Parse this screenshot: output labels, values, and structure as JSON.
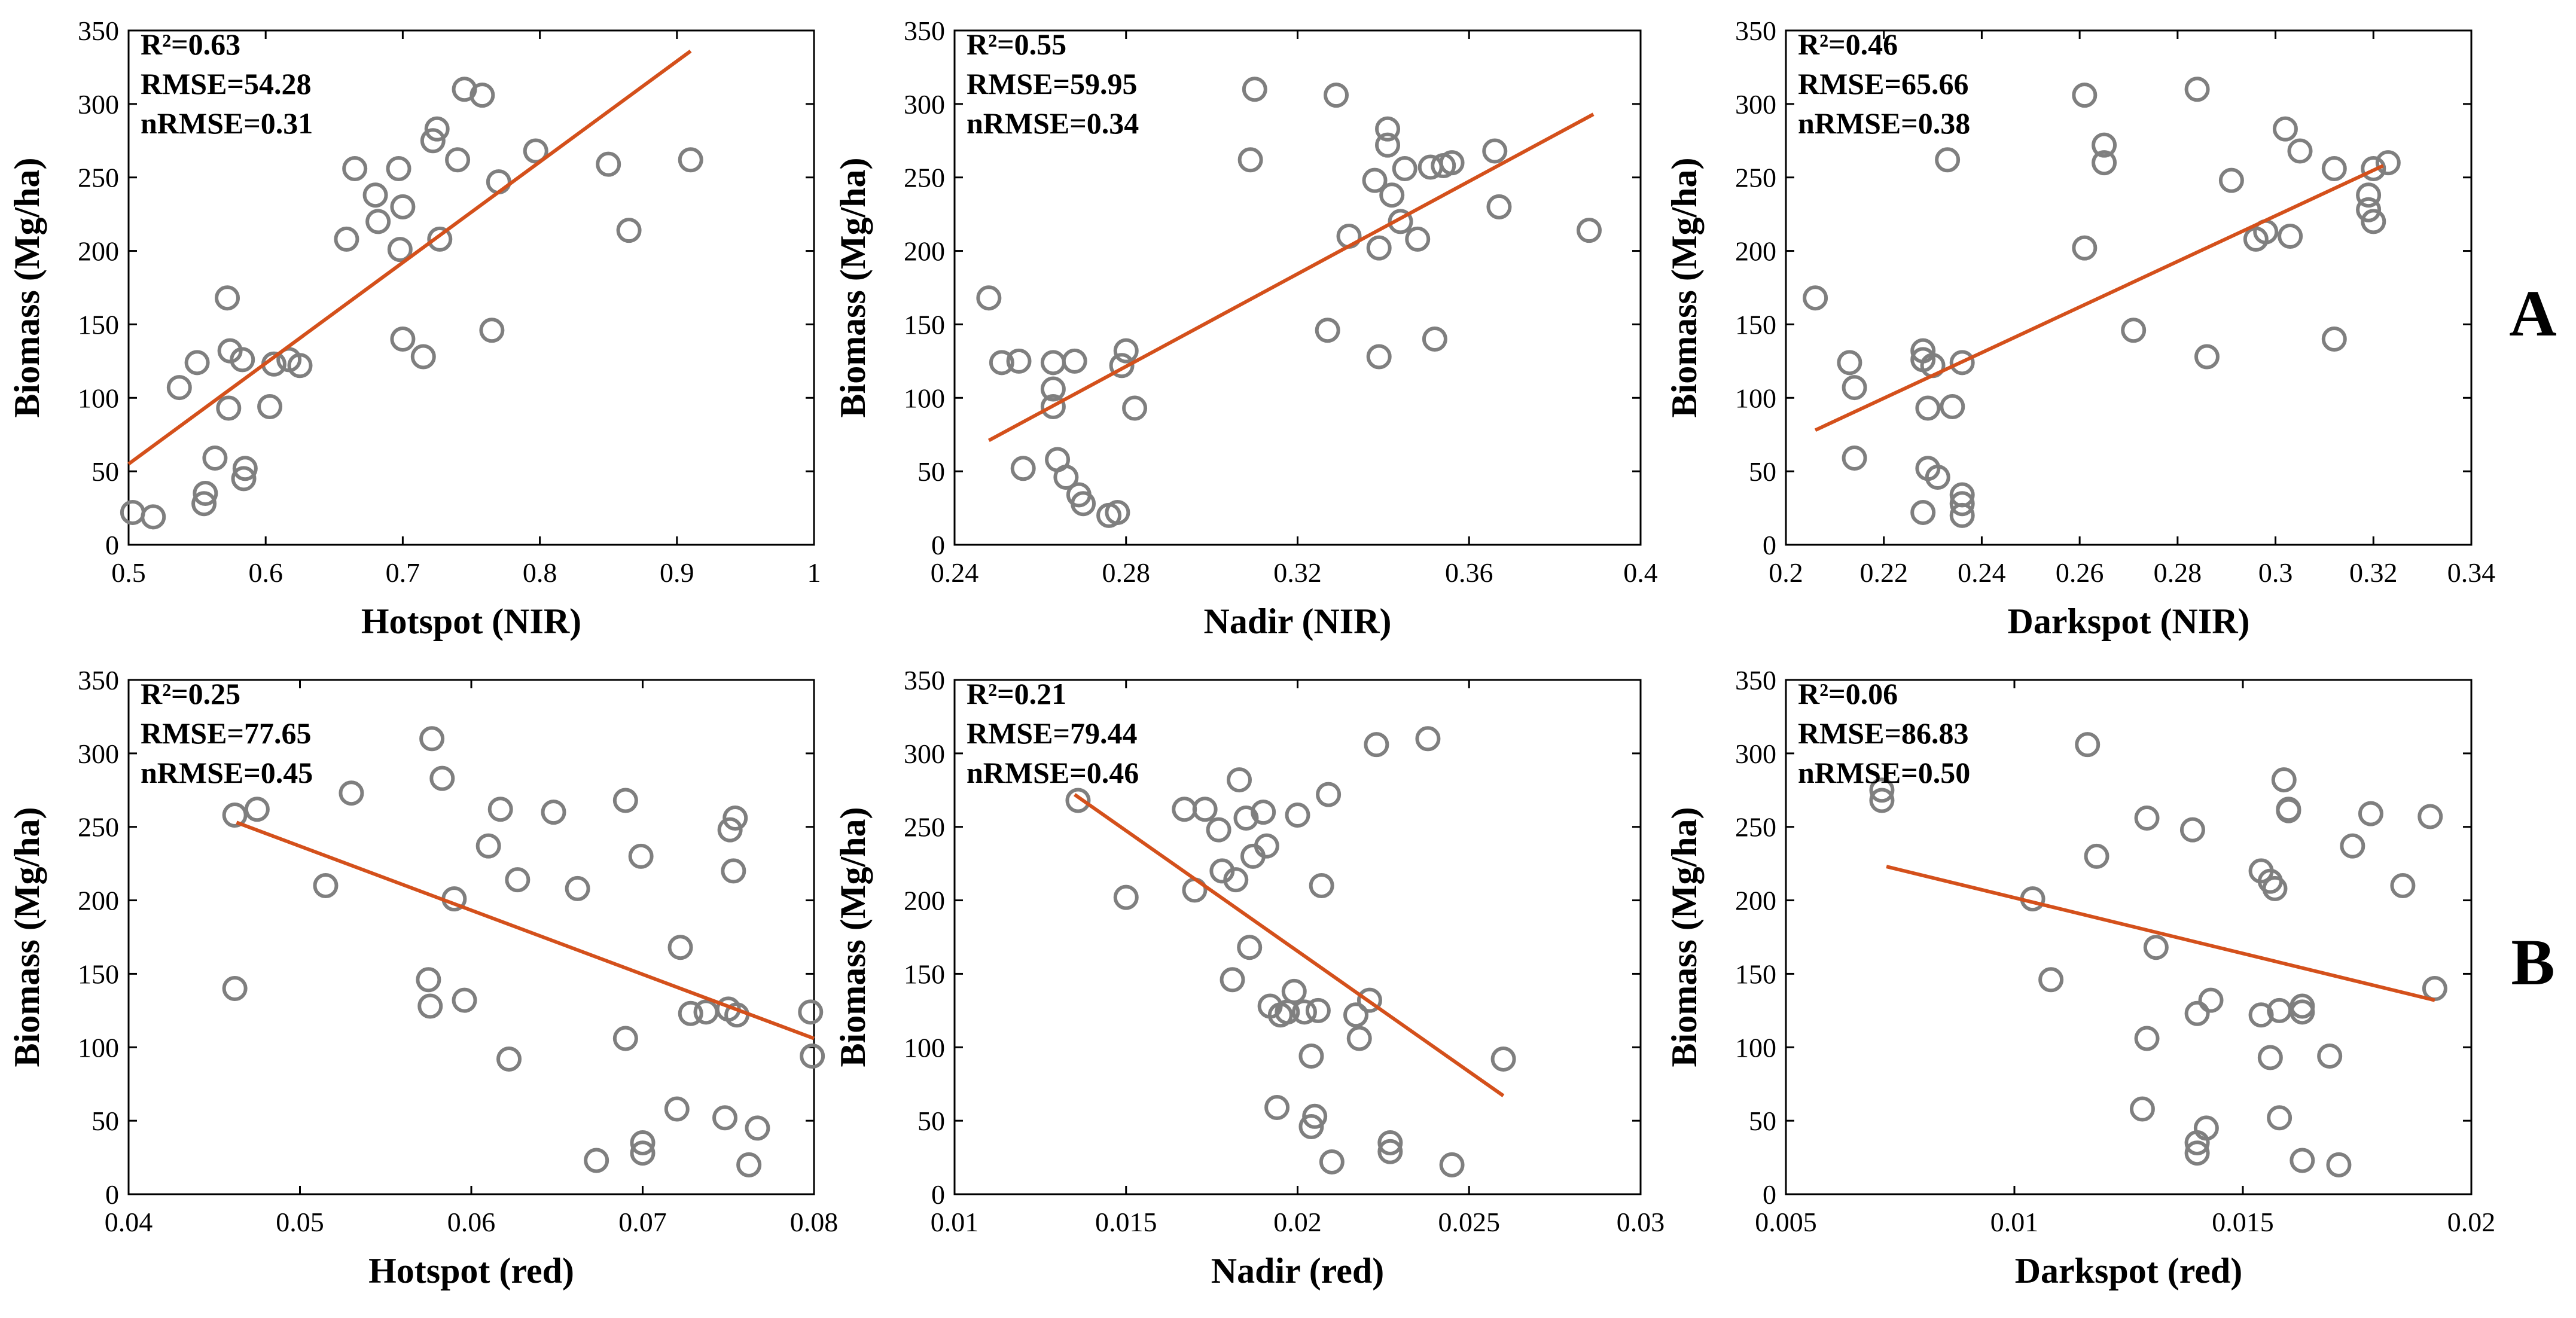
{
  "colors": {
    "points": "#7f7f7f",
    "fit": "#d4501b",
    "axes": "#000000"
  },
  "row_labels": [
    "A",
    "B"
  ],
  "chart_data": [
    {
      "type": "scatter",
      "row": "A",
      "xlabel": "Hotspot (NIR)",
      "ylabel": "Biomass (Mg/ha)",
      "xlim": [
        0.5,
        1.0
      ],
      "ylim": [
        0,
        350
      ],
      "xticks": [
        0.5,
        0.6,
        0.7,
        0.8,
        0.9,
        1.0
      ],
      "xtick_labels": [
        "0.5",
        "0.6",
        "0.7",
        "0.8",
        "0.9",
        "1"
      ],
      "yticks": [
        0,
        50,
        100,
        150,
        200,
        250,
        300,
        350
      ],
      "ytick_labels": [
        "0",
        "50",
        "100",
        "150",
        "200",
        "250",
        "300",
        "350"
      ],
      "stats": [
        "R²=0.63",
        "RMSE=54.28",
        "nRMSE=0.31"
      ],
      "fit": [
        [
          0.5,
          55
        ],
        [
          0.91,
          336
        ]
      ],
      "points": [
        [
          0.503,
          22
        ],
        [
          0.518,
          19
        ],
        [
          0.537,
          107
        ],
        [
          0.55,
          124
        ],
        [
          0.555,
          28
        ],
        [
          0.556,
          35
        ],
        [
          0.563,
          59
        ],
        [
          0.572,
          168
        ],
        [
          0.573,
          93
        ],
        [
          0.574,
          132
        ],
        [
          0.583,
          126
        ],
        [
          0.584,
          45
        ],
        [
          0.585,
          52
        ],
        [
          0.603,
          94
        ],
        [
          0.606,
          123
        ],
        [
          0.617,
          126
        ],
        [
          0.625,
          122
        ],
        [
          0.659,
          208
        ],
        [
          0.665,
          256
        ],
        [
          0.68,
          238
        ],
        [
          0.682,
          220
        ],
        [
          0.697,
          256
        ],
        [
          0.698,
          201
        ],
        [
          0.7,
          230
        ],
        [
          0.7,
          140
        ],
        [
          0.715,
          128
        ],
        [
          0.722,
          275
        ],
        [
          0.725,
          283
        ],
        [
          0.727,
          208
        ],
        [
          0.74,
          262
        ],
        [
          0.745,
          310
        ],
        [
          0.758,
          306
        ],
        [
          0.765,
          146
        ],
        [
          0.77,
          247
        ],
        [
          0.797,
          268
        ],
        [
          0.85,
          259
        ],
        [
          0.865,
          214
        ],
        [
          0.91,
          262
        ]
      ]
    },
    {
      "type": "scatter",
      "row": "A",
      "xlabel": "Nadir (NIR)",
      "ylabel": "Biomass (Mg/ha)",
      "xlim": [
        0.24,
        0.4
      ],
      "ylim": [
        0,
        350
      ],
      "xticks": [
        0.24,
        0.28,
        0.32,
        0.36,
        0.4
      ],
      "xtick_labels": [
        "0.24",
        "0.28",
        "0.32",
        "0.36",
        "0.4"
      ],
      "yticks": [
        0,
        50,
        100,
        150,
        200,
        250,
        300,
        350
      ],
      "ytick_labels": [
        "0",
        "50",
        "100",
        "150",
        "200",
        "250",
        "300",
        "350"
      ],
      "stats": [
        "R²=0.55",
        "RMSE=59.95",
        "nRMSE=0.34"
      ],
      "fit": [
        [
          0.248,
          71
        ],
        [
          0.389,
          293
        ]
      ],
      "points": [
        [
          0.248,
          168
        ],
        [
          0.251,
          124
        ],
        [
          0.255,
          125
        ],
        [
          0.256,
          52
        ],
        [
          0.263,
          124
        ],
        [
          0.263,
          106
        ],
        [
          0.263,
          94
        ],
        [
          0.264,
          58
        ],
        [
          0.266,
          46
        ],
        [
          0.268,
          125
        ],
        [
          0.269,
          34
        ],
        [
          0.27,
          28
        ],
        [
          0.276,
          20
        ],
        [
          0.278,
          22
        ],
        [
          0.279,
          122
        ],
        [
          0.28,
          132
        ],
        [
          0.282,
          93
        ],
        [
          0.309,
          262
        ],
        [
          0.31,
          310
        ],
        [
          0.327,
          146
        ],
        [
          0.329,
          306
        ],
        [
          0.332,
          210
        ],
        [
          0.338,
          248
        ],
        [
          0.339,
          202
        ],
        [
          0.339,
          128
        ],
        [
          0.341,
          272
        ],
        [
          0.341,
          283
        ],
        [
          0.342,
          238
        ],
        [
          0.344,
          220
        ],
        [
          0.345,
          256
        ],
        [
          0.348,
          208
        ],
        [
          0.351,
          257
        ],
        [
          0.352,
          140
        ],
        [
          0.354,
          258
        ],
        [
          0.356,
          260
        ],
        [
          0.366,
          268
        ],
        [
          0.367,
          230
        ],
        [
          0.388,
          214
        ]
      ]
    },
    {
      "type": "scatter",
      "row": "A",
      "xlabel": "Darkspot (NIR)",
      "ylabel": "Biomass (Mg/ha)",
      "xlim": [
        0.2,
        0.34
      ],
      "ylim": [
        0,
        350
      ],
      "xticks": [
        0.2,
        0.22,
        0.24,
        0.26,
        0.28,
        0.3,
        0.32,
        0.34
      ],
      "xtick_labels": [
        "0.2",
        "0.22",
        "0.24",
        "0.26",
        "0.28",
        "0.3",
        "0.32",
        "0.34"
      ],
      "yticks": [
        0,
        50,
        100,
        150,
        200,
        250,
        300,
        350
      ],
      "ytick_labels": [
        "0",
        "50",
        "100",
        "150",
        "200",
        "250",
        "300",
        "350"
      ],
      "stats": [
        "R²=0.46",
        "RMSE=65.66",
        "nRMSE=0.38"
      ],
      "fit": [
        [
          0.206,
          78
        ],
        [
          0.322,
          258
        ]
      ],
      "points": [
        [
          0.206,
          168
        ],
        [
          0.213,
          124
        ],
        [
          0.214,
          107
        ],
        [
          0.214,
          59
        ],
        [
          0.228,
          132
        ],
        [
          0.228,
          126
        ],
        [
          0.229,
          93
        ],
        [
          0.229,
          52
        ],
        [
          0.23,
          122
        ],
        [
          0.231,
          46
        ],
        [
          0.228,
          22
        ],
        [
          0.233,
          262
        ],
        [
          0.234,
          94
        ],
        [
          0.236,
          124
        ],
        [
          0.236,
          34
        ],
        [
          0.236,
          28
        ],
        [
          0.236,
          20
        ],
        [
          0.261,
          306
        ],
        [
          0.261,
          202
        ],
        [
          0.265,
          272
        ],
        [
          0.265,
          260
        ],
        [
          0.271,
          146
        ],
        [
          0.284,
          310
        ],
        [
          0.286,
          128
        ],
        [
          0.291,
          248
        ],
        [
          0.296,
          208
        ],
        [
          0.298,
          213
        ],
        [
          0.302,
          283
        ],
        [
          0.303,
          210
        ],
        [
          0.305,
          268
        ],
        [
          0.312,
          256
        ],
        [
          0.312,
          140
        ],
        [
          0.319,
          238
        ],
        [
          0.319,
          228
        ],
        [
          0.32,
          220
        ],
        [
          0.32,
          256
        ],
        [
          0.323,
          260
        ]
      ]
    },
    {
      "type": "scatter",
      "row": "B",
      "xlabel": "Hotspot (red)",
      "ylabel": "Biomass (Mg/ha)",
      "xlim": [
        0.04,
        0.08
      ],
      "ylim": [
        0,
        350
      ],
      "xticks": [
        0.04,
        0.05,
        0.06,
        0.07,
        0.08
      ],
      "xtick_labels": [
        "0.04",
        "0.05",
        "0.06",
        "0.07",
        "0.08"
      ],
      "yticks": [
        0,
        50,
        100,
        150,
        200,
        250,
        300,
        350
      ],
      "ytick_labels": [
        "0",
        "50",
        "100",
        "150",
        "200",
        "250",
        "300",
        "350"
      ],
      "stats": [
        "R²=0.25",
        "RMSE=77.65",
        "nRMSE=0.45"
      ],
      "fit": [
        [
          0.0463,
          253
        ],
        [
          0.08,
          106
        ]
      ],
      "points": [
        [
          0.0462,
          258
        ],
        [
          0.0462,
          140
        ],
        [
          0.0475,
          262
        ],
        [
          0.0515,
          210
        ],
        [
          0.053,
          273
        ],
        [
          0.0575,
          146
        ],
        [
          0.0576,
          128
        ],
        [
          0.0577,
          310
        ],
        [
          0.0583,
          283
        ],
        [
          0.059,
          201
        ],
        [
          0.0596,
          132
        ],
        [
          0.061,
          237
        ],
        [
          0.0617,
          262
        ],
        [
          0.0622,
          92
        ],
        [
          0.0627,
          214
        ],
        [
          0.0648,
          260
        ],
        [
          0.0662,
          208
        ],
        [
          0.0673,
          23
        ],
        [
          0.069,
          268
        ],
        [
          0.069,
          106
        ],
        [
          0.0699,
          230
        ],
        [
          0.07,
          28
        ],
        [
          0.07,
          35
        ],
        [
          0.072,
          58
        ],
        [
          0.0722,
          168
        ],
        [
          0.0728,
          123
        ],
        [
          0.0737,
          124
        ],
        [
          0.0748,
          52
        ],
        [
          0.0751,
          248
        ],
        [
          0.0753,
          220
        ],
        [
          0.0754,
          256
        ],
        [
          0.0755,
          122
        ],
        [
          0.0762,
          20
        ],
        [
          0.0767,
          45
        ],
        [
          0.0798,
          124
        ],
        [
          0.0799,
          94
        ],
        [
          0.075,
          126
        ]
      ]
    },
    {
      "type": "scatter",
      "row": "B",
      "xlabel": "Nadir (red)",
      "ylabel": "Biomass (Mg/ha)",
      "xlim": [
        0.01,
        0.03
      ],
      "ylim": [
        0,
        350
      ],
      "xticks": [
        0.01,
        0.015,
        0.02,
        0.025,
        0.03
      ],
      "xtick_labels": [
        "0.01",
        "0.015",
        "0.02",
        "0.025",
        "0.03"
      ],
      "yticks": [
        0,
        50,
        100,
        150,
        200,
        250,
        300,
        350
      ],
      "ytick_labels": [
        "0",
        "50",
        "100",
        "150",
        "200",
        "250",
        "300",
        "350"
      ],
      "stats": [
        "R²=0.21",
        "RMSE=79.44",
        "nRMSE=0.46"
      ],
      "fit": [
        [
          0.0135,
          272
        ],
        [
          0.026,
          67
        ]
      ],
      "points": [
        [
          0.0136,
          268
        ],
        [
          0.015,
          202
        ],
        [
          0.0167,
          262
        ],
        [
          0.017,
          207
        ],
        [
          0.0173,
          262
        ],
        [
          0.0177,
          248
        ],
        [
          0.0178,
          220
        ],
        [
          0.0181,
          146
        ],
        [
          0.0182,
          214
        ],
        [
          0.0183,
          282
        ],
        [
          0.0185,
          256
        ],
        [
          0.0186,
          168
        ],
        [
          0.0187,
          230
        ],
        [
          0.019,
          260
        ],
        [
          0.0191,
          237
        ],
        [
          0.0192,
          128
        ],
        [
          0.0194,
          59
        ],
        [
          0.0195,
          122
        ],
        [
          0.0197,
          124
        ],
        [
          0.0199,
          138
        ],
        [
          0.02,
          258
        ],
        [
          0.0202,
          124
        ],
        [
          0.0204,
          94
        ],
        [
          0.0204,
          46
        ],
        [
          0.0205,
          53
        ],
        [
          0.0206,
          125
        ],
        [
          0.0207,
          210
        ],
        [
          0.0209,
          272
        ],
        [
          0.021,
          22
        ],
        [
          0.0217,
          122
        ],
        [
          0.0218,
          106
        ],
        [
          0.0221,
          132
        ],
        [
          0.0223,
          306
        ],
        [
          0.0227,
          29
        ],
        [
          0.0227,
          35
        ],
        [
          0.0238,
          310
        ],
        [
          0.0245,
          20
        ],
        [
          0.026,
          92
        ]
      ]
    },
    {
      "type": "scatter",
      "row": "B",
      "xlabel": "Darkspot (red)",
      "ylabel": "Biomass (Mg/ha)",
      "xlim": [
        0.005,
        0.02
      ],
      "ylim": [
        0,
        350
      ],
      "xticks": [
        0.005,
        0.01,
        0.015,
        0.02
      ],
      "xtick_labels": [
        "0.005",
        "0.01",
        "0.015",
        "0.02"
      ],
      "yticks": [
        0,
        50,
        100,
        150,
        200,
        250,
        300,
        350
      ],
      "ytick_labels": [
        "0",
        "50",
        "100",
        "150",
        "200",
        "250",
        "300",
        "350"
      ],
      "stats": [
        "R²=0.06",
        "RMSE=86.83",
        "nRMSE=0.50"
      ],
      "fit": [
        [
          0.0072,
          223
        ],
        [
          0.0192,
          132
        ]
      ],
      "points": [
        [
          0.0071,
          268
        ],
        [
          0.0071,
          275
        ],
        [
          0.0104,
          201
        ],
        [
          0.0108,
          146
        ],
        [
          0.0116,
          306
        ],
        [
          0.0118,
          230
        ],
        [
          0.0128,
          58
        ],
        [
          0.0129,
          256
        ],
        [
          0.0129,
          106
        ],
        [
          0.0131,
          168
        ],
        [
          0.0139,
          248
        ],
        [
          0.014,
          123
        ],
        [
          0.014,
          28
        ],
        [
          0.014,
          35
        ],
        [
          0.0142,
          45
        ],
        [
          0.0143,
          132
        ],
        [
          0.0154,
          220
        ],
        [
          0.0154,
          122
        ],
        [
          0.0156,
          93
        ],
        [
          0.0156,
          213
        ],
        [
          0.0157,
          208
        ],
        [
          0.0158,
          52
        ],
        [
          0.0158,
          125
        ],
        [
          0.0159,
          282
        ],
        [
          0.016,
          262
        ],
        [
          0.016,
          261
        ],
        [
          0.0163,
          124
        ],
        [
          0.0163,
          128
        ],
        [
          0.0163,
          23
        ],
        [
          0.0169,
          94
        ],
        [
          0.0171,
          20
        ],
        [
          0.0174,
          237
        ],
        [
          0.0178,
          259
        ],
        [
          0.0185,
          210
        ],
        [
          0.0191,
          257
        ],
        [
          0.0192,
          140
        ]
      ]
    }
  ]
}
